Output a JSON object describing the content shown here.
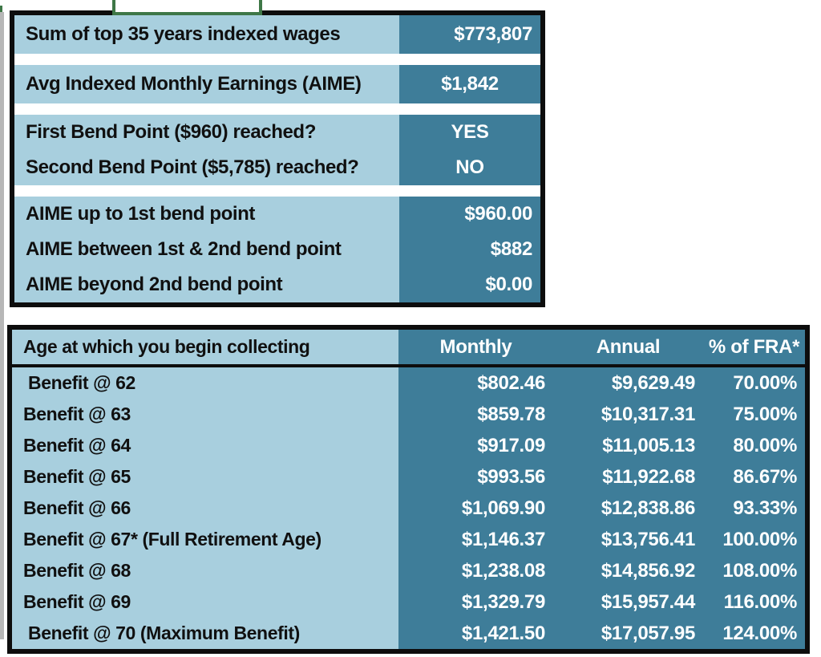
{
  "colors": {
    "label_bg": "#a8cfde",
    "value_bg": "#3e7d99",
    "border": "#0d0d0d",
    "green": "#3e7747",
    "gray_strip": "#b7b7b7"
  },
  "aime_table": {
    "sections": [
      {
        "rows": [
          {
            "label": "Sum of top 35 years indexed wages",
            "value": "$773,807"
          }
        ]
      },
      {
        "rows": [
          {
            "label": "Avg Indexed Monthly Earnings (AIME)",
            "value": "$1,842"
          }
        ]
      },
      {
        "rows": [
          {
            "label": "First Bend Point ($960) reached?",
            "value": "YES"
          },
          {
            "label": "Second Bend Point ($5,785) reached?",
            "value": "NO"
          }
        ]
      },
      {
        "rows": [
          {
            "label": "AIME up to 1st bend point",
            "value": "$960.00"
          },
          {
            "label": "AIME between 1st & 2nd bend point",
            "value": "$882"
          },
          {
            "label": "AIME beyond 2nd bend point",
            "value": "$0.00"
          }
        ]
      }
    ]
  },
  "benefits_table": {
    "header_label": "Age at which you begin collecting",
    "columns": [
      "Monthly",
      "Annual",
      "% of FRA*"
    ],
    "rows": [
      {
        "label": " Benefit @ 62",
        "monthly": "$802.46",
        "annual": "$9,629.49",
        "pct": "70.00%"
      },
      {
        "label": "Benefit @ 63",
        "monthly": "$859.78",
        "annual": "$10,317.31",
        "pct": "75.00%"
      },
      {
        "label": "Benefit @ 64",
        "monthly": "$917.09",
        "annual": "$11,005.13",
        "pct": "80.00%"
      },
      {
        "label": "Benefit @ 65",
        "monthly": "$993.56",
        "annual": "$11,922.68",
        "pct": "86.67%"
      },
      {
        "label": "Benefit @ 66",
        "monthly": "$1,069.90",
        "annual": "$12,838.86",
        "pct": "93.33%"
      },
      {
        "label": "Benefit @ 67* (Full Retirement Age)",
        "monthly": "$1,146.37",
        "annual": "$13,756.41",
        "pct": "100.00%"
      },
      {
        "label": "Benefit @ 68",
        "monthly": "$1,238.08",
        "annual": "$14,856.92",
        "pct": "108.00%"
      },
      {
        "label": "Benefit @ 69",
        "monthly": "$1,329.79",
        "annual": "$15,957.44",
        "pct": "116.00%"
      },
      {
        "label": " Benefit @ 70 (Maximum Benefit)",
        "monthly": "$1,421.50",
        "annual": "$17,057.95",
        "pct": "124.00%"
      }
    ]
  }
}
